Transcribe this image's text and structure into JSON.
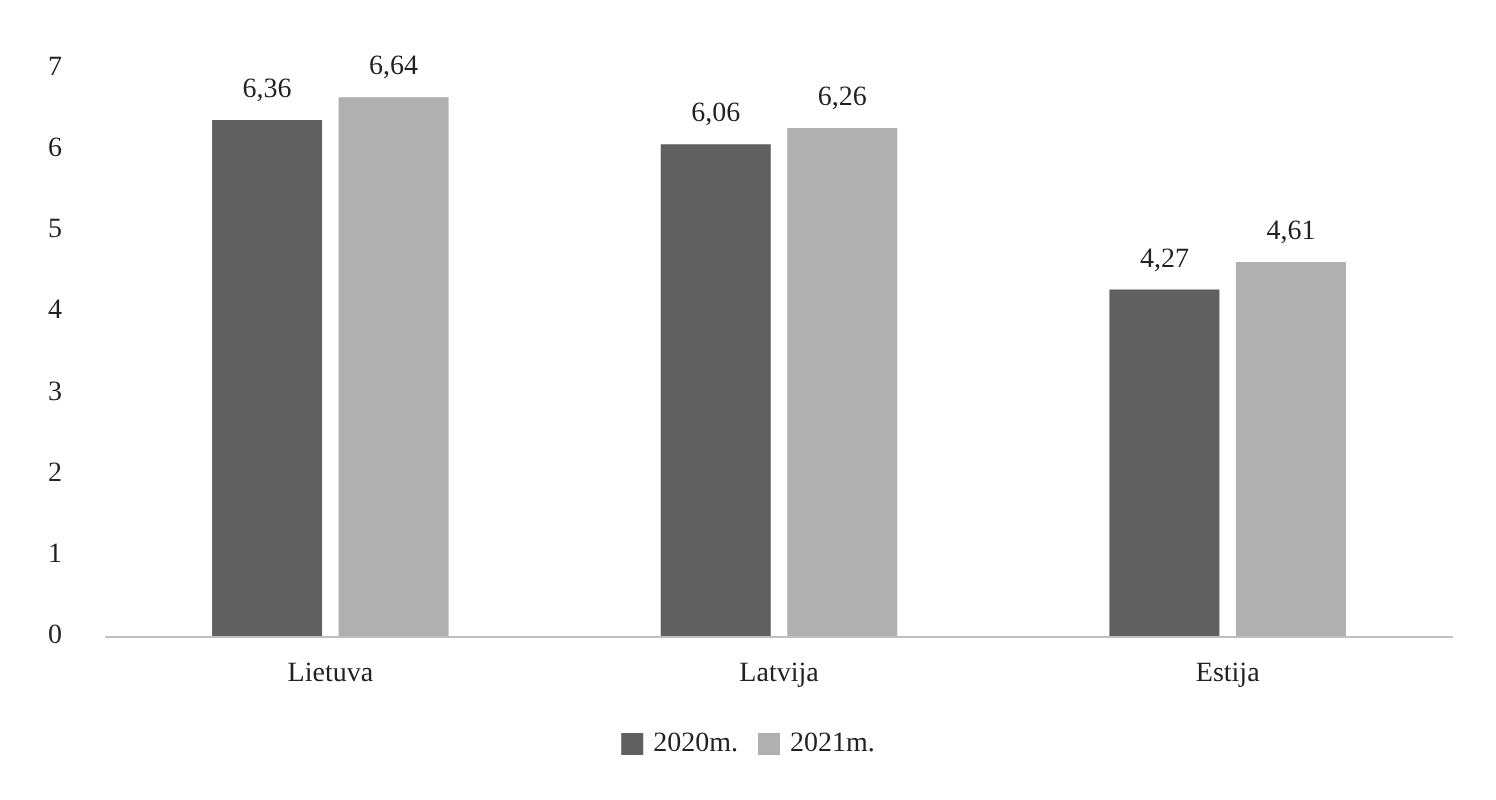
{
  "chart_data": {
    "type": "bar",
    "categories": [
      "Lietuva",
      "Latvija",
      "Estija"
    ],
    "series": [
      {
        "name": "2020m.",
        "color": "#5f605f",
        "values": [
          6.36,
          6.06,
          4.27
        ],
        "value_labels": [
          "6,36",
          "6,06",
          "4,27"
        ]
      },
      {
        "name": "2021m.",
        "color": "#b0b0b0",
        "values": [
          6.64,
          6.26,
          4.61
        ],
        "value_labels": [
          "6,64",
          "6,26",
          "4,61"
        ]
      }
    ],
    "ylim": [
      0,
      7
    ],
    "yticks": [
      0,
      1,
      2,
      3,
      4,
      5,
      6,
      7
    ],
    "grid": false,
    "legend": "bottom"
  }
}
